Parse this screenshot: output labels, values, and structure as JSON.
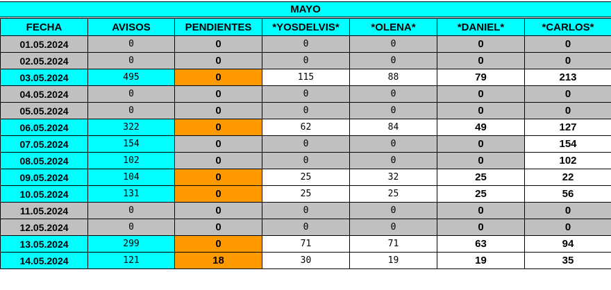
{
  "sheet": {
    "title": "MAYO",
    "headers": [
      "FECHA",
      "AVISOS",
      "PENDIENTES",
      "*YOSDELVIS*",
      "*OLENA*",
      "*DANIEL*",
      "*CARLOS*"
    ],
    "rows": [
      {
        "fecha": "01.05.2024",
        "avisos": "0",
        "pendientes": "0",
        "yosdelvis": "0",
        "olena": "0",
        "daniel": "0",
        "carlos": "0"
      },
      {
        "fecha": "02.05.2024",
        "avisos": "0",
        "pendientes": "0",
        "yosdelvis": "0",
        "olena": "0",
        "daniel": "0",
        "carlos": "0"
      },
      {
        "fecha": "03.05.2024",
        "avisos": "495",
        "pendientes": "0",
        "yosdelvis": "115",
        "olena": "88",
        "daniel": "79",
        "carlos": "213"
      },
      {
        "fecha": "04.05.2024",
        "avisos": "0",
        "pendientes": "0",
        "yosdelvis": "0",
        "olena": "0",
        "daniel": "0",
        "carlos": "0"
      },
      {
        "fecha": "05.05.2024",
        "avisos": "0",
        "pendientes": "0",
        "yosdelvis": "0",
        "olena": "0",
        "daniel": "0",
        "carlos": "0"
      },
      {
        "fecha": "06.05.2024",
        "avisos": "322",
        "pendientes": "0",
        "yosdelvis": "62",
        "olena": "84",
        "daniel": "49",
        "carlos": "127"
      },
      {
        "fecha": "07.05.2024",
        "avisos": "154",
        "pendientes": "0",
        "yosdelvis": "0",
        "olena": "0",
        "daniel": "0",
        "carlos": "154"
      },
      {
        "fecha": "08.05.2024",
        "avisos": "102",
        "pendientes": "0",
        "yosdelvis": "0",
        "olena": "0",
        "daniel": "0",
        "carlos": "102"
      },
      {
        "fecha": "09.05.2024",
        "avisos": "104",
        "pendientes": "0",
        "yosdelvis": "25",
        "olena": "32",
        "daniel": "25",
        "carlos": "22"
      },
      {
        "fecha": "10.05.2024",
        "avisos": "131",
        "pendientes": "0",
        "yosdelvis": "25",
        "olena": "25",
        "daniel": "25",
        "carlos": "56"
      },
      {
        "fecha": "11.05.2024",
        "avisos": "0",
        "pendientes": "0",
        "yosdelvis": "0",
        "olena": "0",
        "daniel": "0",
        "carlos": "0"
      },
      {
        "fecha": "12.05.2024",
        "avisos": "0",
        "pendientes": "0",
        "yosdelvis": "0",
        "olena": "0",
        "daniel": "0",
        "carlos": "0"
      },
      {
        "fecha": "13.05.2024",
        "avisos": "299",
        "pendientes": "0",
        "yosdelvis": "71",
        "olena": "71",
        "daniel": "63",
        "carlos": "94"
      },
      {
        "fecha": "14.05.2024",
        "avisos": "121",
        "pendientes": "18",
        "yosdelvis": "30",
        "olena": "19",
        "daniel": "19",
        "carlos": "35"
      }
    ]
  },
  "colors": {
    "header_cyan": "#00ffff",
    "inactive_gray": "#c0c0c0",
    "pending_orange": "#ff9900",
    "cell_white": "#ffffff"
  }
}
